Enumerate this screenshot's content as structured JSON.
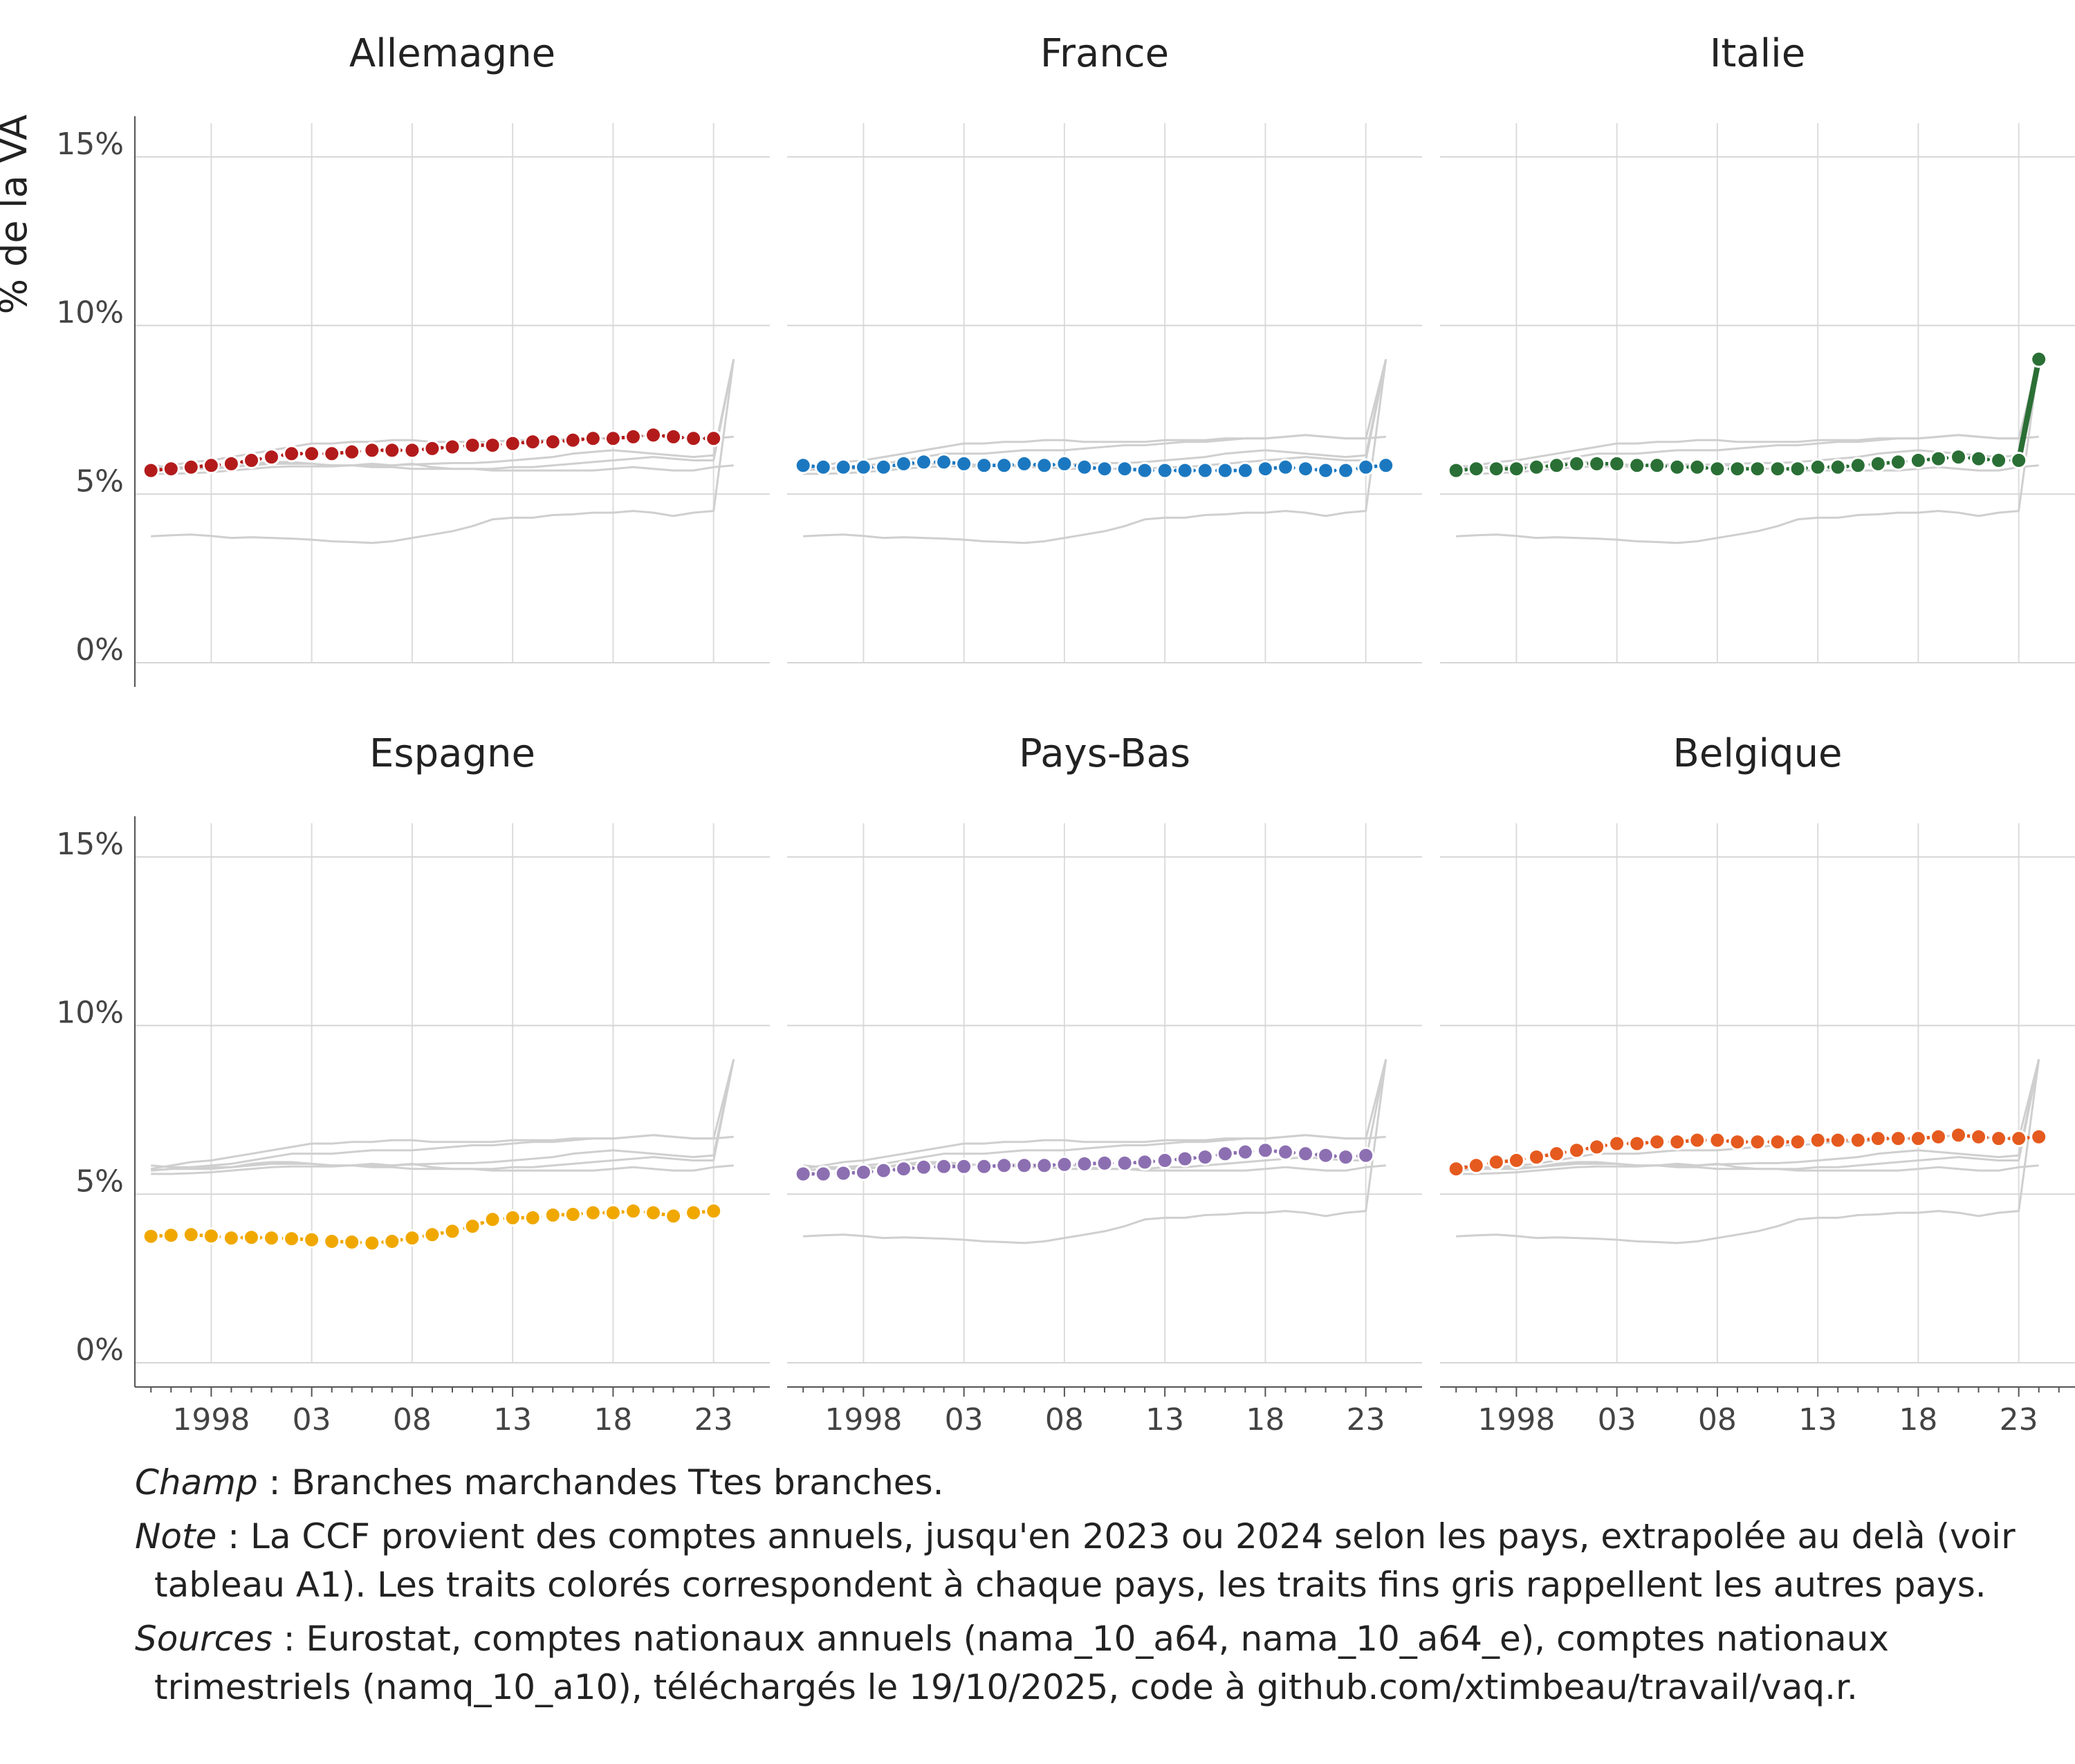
{
  "chart_data": {
    "type": "line",
    "facets": [
      "Allemagne",
      "France",
      "Italie",
      "Espagne",
      "Pays-Bas",
      "Belgique"
    ],
    "ylabel": "% de la VA",
    "ylim": [
      0,
      16
    ],
    "yticks": [
      0,
      5,
      10,
      15
    ],
    "ytick_labels": [
      "0%",
      "5%",
      "10%",
      "15%"
    ],
    "xlim": [
      1994.2,
      2025.8
    ],
    "xticks": [
      1998,
      2003,
      2008,
      2013,
      2018,
      2023
    ],
    "xtick_labels": [
      "1998",
      "03",
      "08",
      "13",
      "18",
      "23"
    ],
    "years": [
      1995,
      1996,
      1997,
      1998,
      1999,
      2000,
      2001,
      2002,
      2003,
      2004,
      2005,
      2006,
      2007,
      2008,
      2009,
      2010,
      2011,
      2012,
      2013,
      2014,
      2015,
      2016,
      2017,
      2018,
      2019,
      2020,
      2021,
      2022,
      2023,
      2024
    ],
    "series": [
      {
        "name": "Allemagne",
        "color": "#b31b1b",
        "last_year": 2023,
        "values": [
          5.7,
          5.75,
          5.8,
          5.85,
          5.9,
          6.0,
          6.1,
          6.2,
          6.2,
          6.2,
          6.25,
          6.3,
          6.3,
          6.3,
          6.35,
          6.4,
          6.45,
          6.45,
          6.5,
          6.55,
          6.55,
          6.6,
          6.65,
          6.65,
          6.7,
          6.75,
          6.7,
          6.65,
          6.65
        ]
      },
      {
        "name": "France",
        "color": "#1b78c0",
        "last_year": 2024,
        "values": [
          5.85,
          5.8,
          5.8,
          5.8,
          5.8,
          5.9,
          5.95,
          5.95,
          5.9,
          5.85,
          5.85,
          5.9,
          5.85,
          5.9,
          5.8,
          5.75,
          5.75,
          5.7,
          5.7,
          5.7,
          5.7,
          5.7,
          5.7,
          5.75,
          5.8,
          5.75,
          5.7,
          5.7,
          5.8,
          5.85
        ]
      },
      {
        "name": "Italie",
        "color": "#2a6f35",
        "last_year": 2024,
        "values": [
          5.7,
          5.75,
          5.75,
          5.75,
          5.8,
          5.85,
          5.9,
          5.9,
          5.9,
          5.85,
          5.85,
          5.8,
          5.8,
          5.75,
          5.75,
          5.75,
          5.75,
          5.75,
          5.8,
          5.8,
          5.85,
          5.9,
          5.95,
          6.0,
          6.05,
          6.1,
          6.05,
          6.0,
          6.0,
          9.0
        ]
      },
      {
        "name": "Espagne",
        "color": "#f0a800",
        "last_year": 2023,
        "values": [
          3.75,
          3.78,
          3.8,
          3.76,
          3.7,
          3.72,
          3.7,
          3.68,
          3.65,
          3.6,
          3.58,
          3.55,
          3.6,
          3.7,
          3.8,
          3.9,
          4.05,
          4.25,
          4.3,
          4.3,
          4.38,
          4.4,
          4.45,
          4.45,
          4.5,
          4.45,
          4.35,
          4.45,
          4.5
        ]
      },
      {
        "name": "Pays-Bas",
        "color": "#8c6fb1",
        "last_year": 2023,
        "values": [
          5.6,
          5.6,
          5.62,
          5.65,
          5.7,
          5.75,
          5.8,
          5.82,
          5.82,
          5.82,
          5.85,
          5.85,
          5.85,
          5.88,
          5.9,
          5.92,
          5.92,
          5.95,
          6.0,
          6.05,
          6.1,
          6.2,
          6.25,
          6.3,
          6.25,
          6.2,
          6.15,
          6.1,
          6.15
        ]
      },
      {
        "name": "Belgique",
        "color": "#e55a1e",
        "last_year": 2024,
        "values": [
          5.75,
          5.85,
          5.95,
          6.0,
          6.1,
          6.2,
          6.3,
          6.4,
          6.5,
          6.5,
          6.55,
          6.55,
          6.6,
          6.6,
          6.55,
          6.55,
          6.55,
          6.55,
          6.6,
          6.6,
          6.6,
          6.65,
          6.65,
          6.65,
          6.7,
          6.75,
          6.7,
          6.65,
          6.65,
          6.7
        ]
      }
    ],
    "extrapolation_value": 9.0
  },
  "caption": {
    "champ_label": "Champ",
    "champ_text": " : Branches marchandes Ttes branches.",
    "note_label": "Note",
    "note_text": " : La CCF provient des comptes annuels, jusqu'en 2023 ou 2024 selon les pays, extrapolée au delà (voir tableau A1). Les traits colorés correspondent à chaque pays, les traits fins gris rappellent les autres pays.",
    "sources_label": "Sources",
    "sources_text": " : Eurostat, comptes nationaux annuels (nama_10_a64, nama_10_a64_e), comptes nationaux trimestriels (namq_10_a10), téléchargés le 19/10/2025, code à github.com/xtimbeau/travail/vaq.r."
  }
}
